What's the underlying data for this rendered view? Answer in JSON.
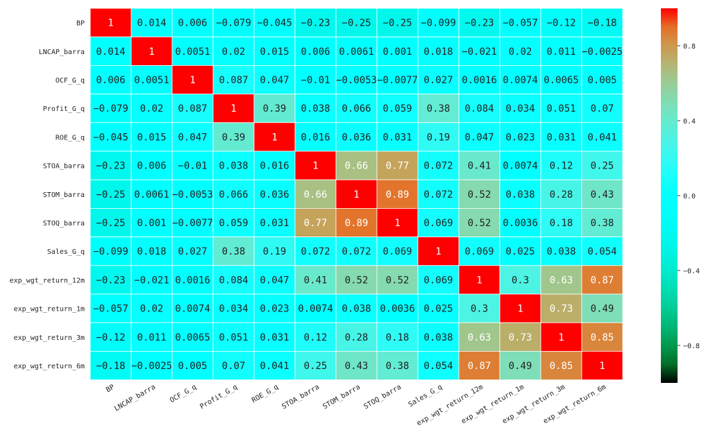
{
  "chart_data": {
    "type": "heatmap",
    "labels": [
      "BP",
      "LNCAP_barra",
      "OCF_G_q",
      "Profit_G_q",
      "ROE_G_q",
      "STOA_barra",
      "STOM_barra",
      "STOQ_barra",
      "Sales_G_q",
      "exp_wgt_return_12m",
      "exp_wgt_return_1m",
      "exp_wgt_return_3m",
      "exp_wgt_return_6m"
    ],
    "cell_labels": [
      [
        "1",
        "0.014",
        "0.006",
        "-0.079",
        "-0.045",
        "-0.23",
        "-0.25",
        "-0.25",
        "-0.099",
        "-0.23",
        "-0.057",
        "-0.12",
        "-0.18"
      ],
      [
        "0.014",
        "1",
        "0.0051",
        "0.02",
        "0.015",
        "0.006",
        "0.0061",
        "0.001",
        "0.018",
        "-0.021",
        "0.02",
        "0.011",
        "-0.0025"
      ],
      [
        "0.006",
        "0.0051",
        "1",
        "0.087",
        "0.047",
        "-0.01",
        "-0.0053",
        "-0.0077",
        "0.027",
        "0.0016",
        "0.0074",
        "0.0065",
        "0.005"
      ],
      [
        "-0.079",
        "0.02",
        "0.087",
        "1",
        "0.39",
        "0.038",
        "0.066",
        "0.059",
        "0.38",
        "0.084",
        "0.034",
        "0.051",
        "0.07"
      ],
      [
        "-0.045",
        "0.015",
        "0.047",
        "0.39",
        "1",
        "0.016",
        "0.036",
        "0.031",
        "0.19",
        "0.047",
        "0.023",
        "0.031",
        "0.041"
      ],
      [
        "-0.23",
        "0.006",
        "-0.01",
        "0.038",
        "0.016",
        "1",
        "0.66",
        "0.77",
        "0.072",
        "0.41",
        "0.0074",
        "0.12",
        "0.25"
      ],
      [
        "-0.25",
        "0.0061",
        "-0.0053",
        "0.066",
        "0.036",
        "0.66",
        "1",
        "0.89",
        "0.072",
        "0.52",
        "0.038",
        "0.28",
        "0.43"
      ],
      [
        "-0.25",
        "0.001",
        "-0.0077",
        "0.059",
        "0.031",
        "0.77",
        "0.89",
        "1",
        "0.069",
        "0.52",
        "0.0036",
        "0.18",
        "0.38"
      ],
      [
        "-0.099",
        "0.018",
        "0.027",
        "0.38",
        "0.19",
        "0.072",
        "0.072",
        "0.069",
        "1",
        "0.069",
        "0.025",
        "0.038",
        "0.054"
      ],
      [
        "-0.23",
        "-0.021",
        "0.0016",
        "0.084",
        "0.047",
        "0.41",
        "0.52",
        "0.52",
        "0.069",
        "1",
        "0.3",
        "0.63",
        "0.87"
      ],
      [
        "-0.057",
        "0.02",
        "0.0074",
        "0.034",
        "0.023",
        "0.0074",
        "0.038",
        "0.0036",
        "0.025",
        "0.3",
        "1",
        "0.73",
        "0.49"
      ],
      [
        "-0.12",
        "0.011",
        "0.0065",
        "0.051",
        "0.031",
        "0.12",
        "0.28",
        "0.18",
        "0.038",
        "0.63",
        "0.73",
        "1",
        "0.85"
      ],
      [
        "-0.18",
        "-0.0025",
        "0.005",
        "0.07",
        "0.041",
        "0.25",
        "0.43",
        "0.38",
        "0.054",
        "0.87",
        "0.49",
        "0.85",
        "1"
      ]
    ],
    "colormap": "rainbow",
    "vmin": -1,
    "vmax": 1,
    "colorbar_ticks": [
      "0.8",
      "0.4",
      "0.0",
      "-0.4",
      "-0.8"
    ]
  }
}
